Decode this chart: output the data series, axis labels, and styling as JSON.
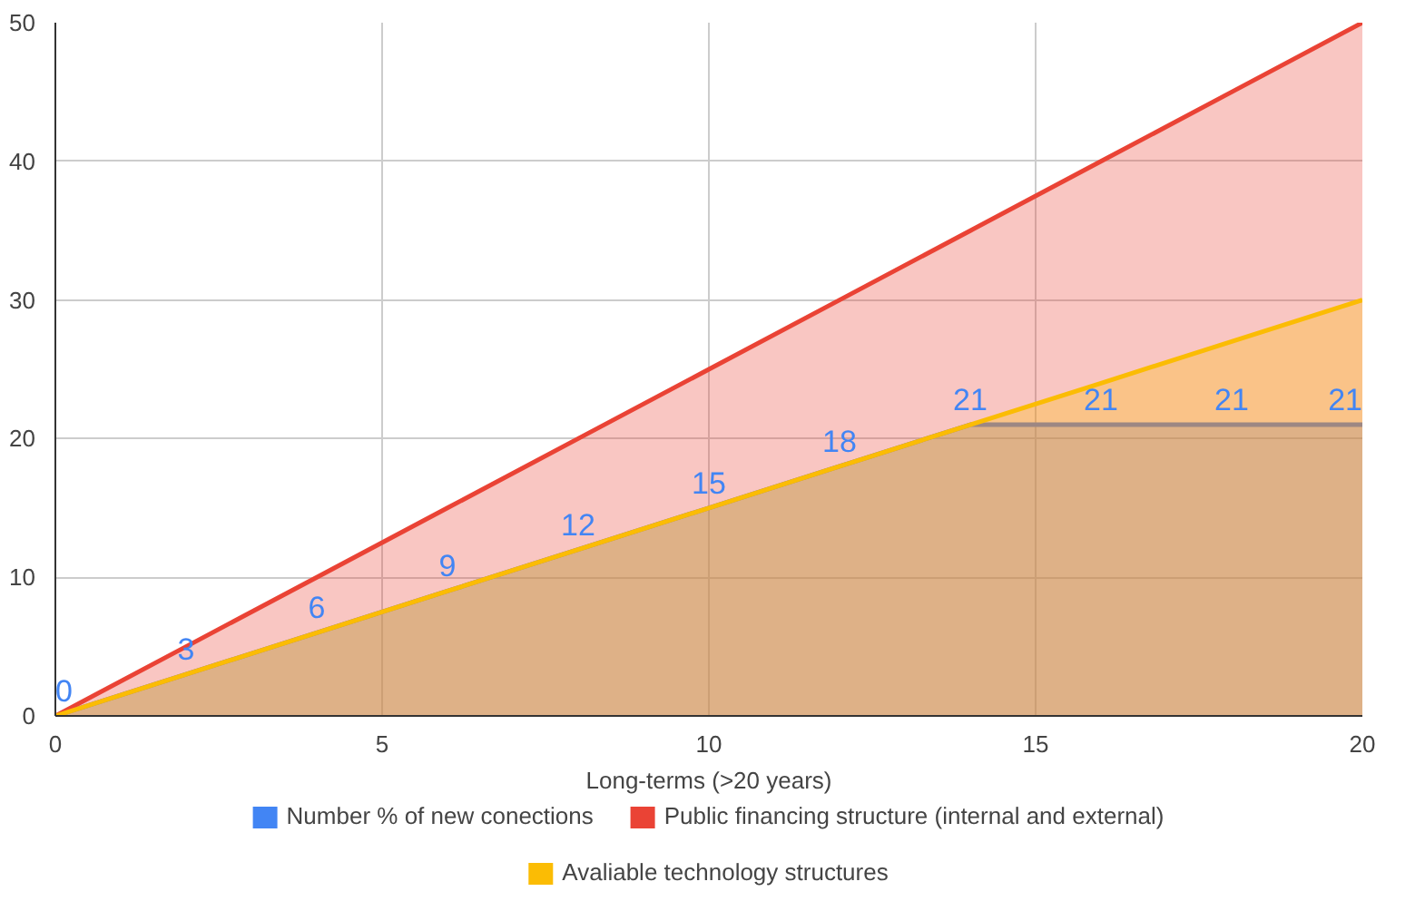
{
  "chart_data": {
    "type": "area",
    "xlabel": "Long-terms (>20 years)",
    "x": [
      0,
      2,
      4,
      6,
      8,
      10,
      12,
      14,
      16,
      18,
      20
    ],
    "series": [
      {
        "name": "Number % of new conections",
        "color": "#4285f4",
        "values": [
          0,
          3,
          6,
          9,
          12,
          15,
          18,
          21,
          21,
          21,
          21
        ],
        "value_labels": [
          "0",
          "3",
          "6",
          "9",
          "12",
          "15",
          "18",
          "21",
          "21",
          "21",
          "21"
        ]
      },
      {
        "name": "Public financing structure (internal and external)",
        "color": "#ea4335",
        "values": [
          0,
          5,
          10,
          15,
          20,
          25,
          30,
          35,
          40,
          45,
          50
        ]
      },
      {
        "name": "Avaliable technology structures",
        "color": "#fbbc04",
        "values": [
          0,
          3,
          6,
          9,
          12,
          15,
          18,
          21,
          24,
          27,
          30
        ]
      }
    ],
    "xlim": [
      0,
      20
    ],
    "xticks": [
      0,
      5,
      10,
      15,
      20
    ],
    "ylim": [
      0,
      50
    ],
    "yticks": [
      0,
      10,
      20,
      30,
      40,
      50
    ],
    "grid": true,
    "legend": "bottom"
  }
}
